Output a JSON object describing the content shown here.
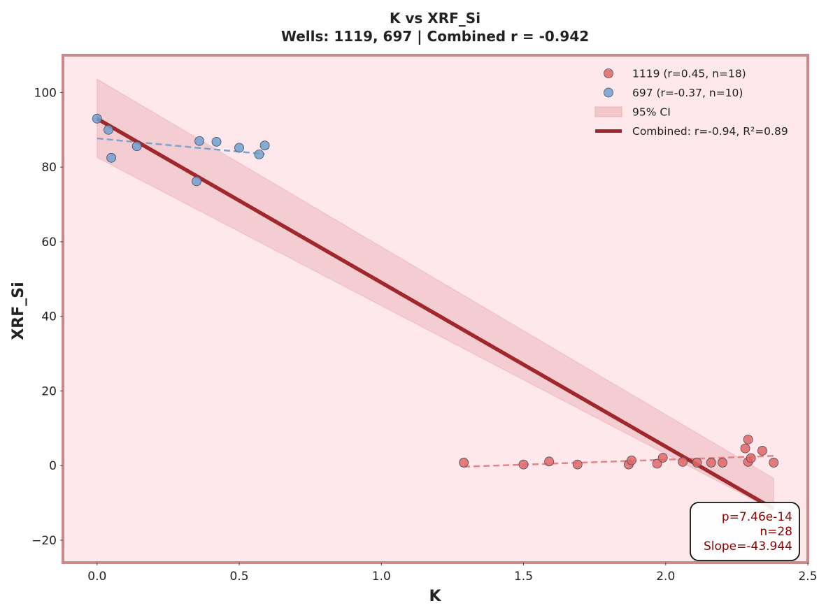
{
  "chart_data": {
    "type": "scatter",
    "title": "K vs XRF_Si",
    "subtitle": "Wells: 1119, 697 | Combined r = -0.942",
    "xlabel": "K",
    "ylabel": "XRF_Si",
    "xlim": [
      -0.12,
      2.5
    ],
    "ylim": [
      -26,
      110
    ],
    "xticks": [
      0.0,
      0.5,
      1.0,
      1.5,
      2.0,
      2.5
    ],
    "xtick_labels": [
      "0.0",
      "0.5",
      "1.0",
      "1.5",
      "2.0",
      "2.5"
    ],
    "yticks": [
      -20,
      0,
      20,
      40,
      60,
      80,
      100
    ],
    "ytick_labels": [
      "−20",
      "0",
      "20",
      "40",
      "60",
      "80",
      "100"
    ],
    "grid": false,
    "legend_position": "top-right",
    "series": [
      {
        "name": "1119 (r=0.45, n=18)",
        "color": "#e06666",
        "trend_color": "#e88484",
        "x": [
          1.29,
          1.5,
          1.59,
          1.69,
          1.87,
          1.88,
          1.97,
          1.99,
          2.06,
          2.11,
          2.16,
          2.2,
          2.28,
          2.29,
          2.29,
          2.3,
          2.34,
          2.38
        ],
        "y": [
          0.8,
          0.3,
          1.1,
          0.3,
          0.3,
          1.4,
          0.5,
          2.1,
          1.0,
          0.8,
          0.8,
          0.8,
          4.6,
          7.0,
          1.0,
          2.0,
          4.0,
          0.8
        ],
        "trend": {
          "x": [
            1.29,
            2.38
          ],
          "y": [
            -0.3,
            2.6
          ]
        }
      },
      {
        "name": "697 (r=-0.37, n=10)",
        "color": "#6fa0d0",
        "trend_color": "#7ea4cc",
        "x": [
          0.0,
          0.04,
          0.05,
          0.14,
          0.35,
          0.36,
          0.42,
          0.5,
          0.57,
          0.59
        ],
        "y": [
          93.0,
          90.0,
          82.5,
          85.6,
          76.2,
          87.0,
          86.8,
          85.2,
          83.4,
          85.8
        ],
        "trend": {
          "x": [
            0.0,
            0.59
          ],
          "y": [
            87.7,
            83.5
          ]
        }
      }
    ],
    "ci": {
      "label": "95% CI",
      "color": "#d98a92",
      "x": [
        0.0,
        2.38
      ],
      "upper": [
        103.6,
        -3.4
      ],
      "lower": [
        82.6,
        -12.0
      ]
    },
    "combined": {
      "label": "Combined: r=-0.94, R²=0.89",
      "color": "#a0282b",
      "x": [
        0.0,
        2.38
      ],
      "y": [
        93.0,
        -11.6
      ]
    },
    "stats": [
      "p=7.46e-14",
      "n=28",
      "Slope=-43.944"
    ],
    "plot_background": "#fee8eb",
    "frame_color": "#c98a8a"
  }
}
